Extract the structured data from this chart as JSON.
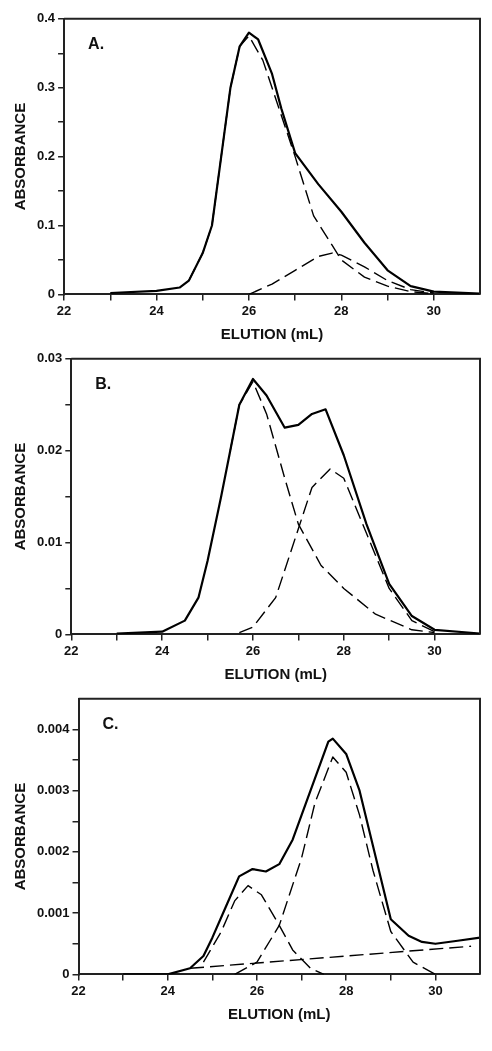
{
  "chart_data": [
    {
      "type": "line",
      "xlabel": "ELUTION (mL)",
      "ylabel": "ABSORBANCE",
      "annotations": [
        "A."
      ],
      "xlim": [
        22,
        31
      ],
      "ylim": [
        0,
        0.4
      ],
      "xticks": [
        22,
        {
          "value": 23,
          "label": null
        },
        24,
        {
          "value": 25,
          "label": null
        },
        26,
        {
          "value": 27,
          "label": null
        },
        28,
        {
          "value": 29,
          "label": null
        },
        30
      ],
      "yticks": [
        0,
        {
          "value": 0.05,
          "label": null
        },
        0.1,
        {
          "value": 0.15,
          "label": null
        },
        0.2,
        {
          "value": 0.25,
          "label": null
        },
        0.3,
        {
          "value": 0.35,
          "label": null
        },
        0.4
      ],
      "series": [
        {
          "color": "#000000",
          "line_style": "solid",
          "x": [
            23,
            24,
            24.5,
            24.7,
            25,
            25.2,
            25.4,
            25.6,
            25.8,
            26,
            26.2,
            26.5,
            26.7,
            27,
            27.5,
            28,
            28.5,
            29,
            29.5,
            30,
            31
          ],
          "values": [
            0.002,
            0.005,
            0.01,
            0.02,
            0.06,
            0.1,
            0.2,
            0.3,
            0.36,
            0.38,
            0.37,
            0.32,
            0.27,
            0.205,
            0.16,
            0.12,
            0.075,
            0.035,
            0.012,
            0.004,
            0.001
          ]
        },
        {
          "color": "#000000",
          "line_style": "dashed",
          "x": [
            24.7,
            25,
            25.2,
            25.4,
            25.6,
            25.8,
            26,
            26.3,
            26.7,
            27,
            27.4,
            28,
            28.5,
            29,
            29.5,
            30
          ],
          "values": [
            0.02,
            0.06,
            0.1,
            0.2,
            0.3,
            0.36,
            0.375,
            0.34,
            0.26,
            0.2,
            0.114,
            0.05,
            0.025,
            0.012,
            0.004,
            0.001
          ]
        },
        {
          "color": "#000000",
          "line_style": "dashed",
          "x": [
            26,
            26.5,
            27,
            27.5,
            27.8,
            28,
            28.5,
            29,
            29.5,
            30
          ],
          "values": [
            0,
            0.015,
            0.035,
            0.055,
            0.06,
            0.057,
            0.04,
            0.02,
            0.007,
            0.002
          ]
        }
      ]
    },
    {
      "type": "line",
      "xlabel": "ELUTION (mL)",
      "ylabel": "ABSORBANCE",
      "annotations": [
        "B."
      ],
      "xlim": [
        22,
        31
      ],
      "ylim": [
        0,
        0.03
      ],
      "xticks": [
        22,
        {
          "value": 23,
          "label": null
        },
        24,
        {
          "value": 25,
          "label": null
        },
        26,
        {
          "value": 27,
          "label": null
        },
        28,
        {
          "value": 29,
          "label": null
        },
        30
      ],
      "yticks": [
        0,
        {
          "value": 0.005,
          "label": null
        },
        0.01,
        {
          "value": 0.015,
          "label": null
        },
        0.02,
        {
          "value": 0.025,
          "label": null
        },
        0.03
      ],
      "series": [
        {
          "color": "#000000",
          "line_style": "solid",
          "x": [
            23,
            24,
            24.5,
            24.8,
            25,
            25.3,
            25.5,
            25.7,
            26,
            26.3,
            26.7,
            27,
            27.3,
            27.6,
            28,
            28.5,
            29,
            29.5,
            30,
            31
          ],
          "values": [
            0.0001,
            0.0003,
            0.0015,
            0.004,
            0.008,
            0.015,
            0.02,
            0.025,
            0.0278,
            0.026,
            0.0225,
            0.0228,
            0.024,
            0.0245,
            0.0195,
            0.012,
            0.0055,
            0.002,
            0.0005,
            0.0001
          ]
        },
        {
          "color": "#000000",
          "line_style": "dashed",
          "x": [
            25.5,
            25.7,
            26,
            26.3,
            26.7,
            27,
            27.5,
            28,
            28.7,
            29.5,
            30
          ],
          "values": [
            0.02,
            0.025,
            0.0275,
            0.024,
            0.017,
            0.012,
            0.0075,
            0.005,
            0.0022,
            0.0005,
            0.0002
          ]
        },
        {
          "color": "#000000",
          "line_style": "dashed",
          "x": [
            25.7,
            26,
            26.5,
            27,
            27.3,
            27.7,
            28,
            28.5,
            29,
            29.5,
            30
          ],
          "values": [
            0.0002,
            0.0008,
            0.004,
            0.0115,
            0.016,
            0.018,
            0.017,
            0.011,
            0.005,
            0.0015,
            0.0003
          ]
        }
      ]
    },
    {
      "type": "line",
      "xlabel": "ELUTION (mL)",
      "ylabel": "ABSORBANCE",
      "annotations": [
        "C."
      ],
      "xlim": [
        22,
        31
      ],
      "ylim": [
        0,
        0.0045
      ],
      "xticks": [
        22,
        {
          "value": 23,
          "label": null
        },
        24,
        {
          "value": 25,
          "label": null
        },
        26,
        {
          "value": 27,
          "label": null
        },
        28,
        {
          "value": 29,
          "label": null
        },
        30
      ],
      "yticks": [
        0,
        {
          "value": 0.0005,
          "label": null
        },
        0.001,
        {
          "value": 0.0015,
          "label": null
        },
        0.002,
        {
          "value": 0.0025,
          "label": null
        },
        0.003,
        {
          "value": 0.0035,
          "label": null
        },
        0.004
      ],
      "series": [
        {
          "color": "#000000",
          "line_style": "solid",
          "x": [
            23,
            24,
            24.5,
            24.8,
            25,
            25.3,
            25.6,
            25.9,
            26.2,
            26.5,
            26.8,
            27,
            27.3,
            27.6,
            27.7,
            28,
            28.3,
            28.6,
            29,
            29.4,
            29.7,
            30,
            30.5,
            31
          ],
          "values": [
            0,
            0,
            0.0001,
            0.0003,
            0.0006,
            0.0011,
            0.0016,
            0.00172,
            0.00168,
            0.0018,
            0.0022,
            0.0026,
            0.0032,
            0.0038,
            0.00385,
            0.0036,
            0.003,
            0.0021,
            0.0009,
            0.00063,
            0.00053,
            0.0005,
            0.00055,
            0.0006
          ]
        },
        {
          "color": "#000000",
          "line_style": "dashed",
          "x": [
            24.8,
            25.2,
            25.5,
            25.8,
            26.1,
            26.5,
            26.8,
            27.2,
            27.5
          ],
          "values": [
            0.0002,
            0.0007,
            0.0012,
            0.00145,
            0.0013,
            0.0008,
            0.0004,
            0.0001,
            0
          ]
        },
        {
          "color": "#000000",
          "line_style": "dashed",
          "x": [
            25.5,
            26,
            26.5,
            27,
            27.3,
            27.7,
            28,
            28.3,
            28.6,
            29,
            29.5,
            30
          ],
          "values": [
            0,
            0.0002,
            0.0008,
            0.0019,
            0.0028,
            0.00355,
            0.0033,
            0.0026,
            0.0017,
            0.0007,
            0.0002,
            0
          ]
        },
        {
          "color": "#000000",
          "line_style": "dashed",
          "x": [
            24.5,
            30.8
          ],
          "values": [
            0.0001,
            0.00046
          ]
        }
      ]
    }
  ]
}
